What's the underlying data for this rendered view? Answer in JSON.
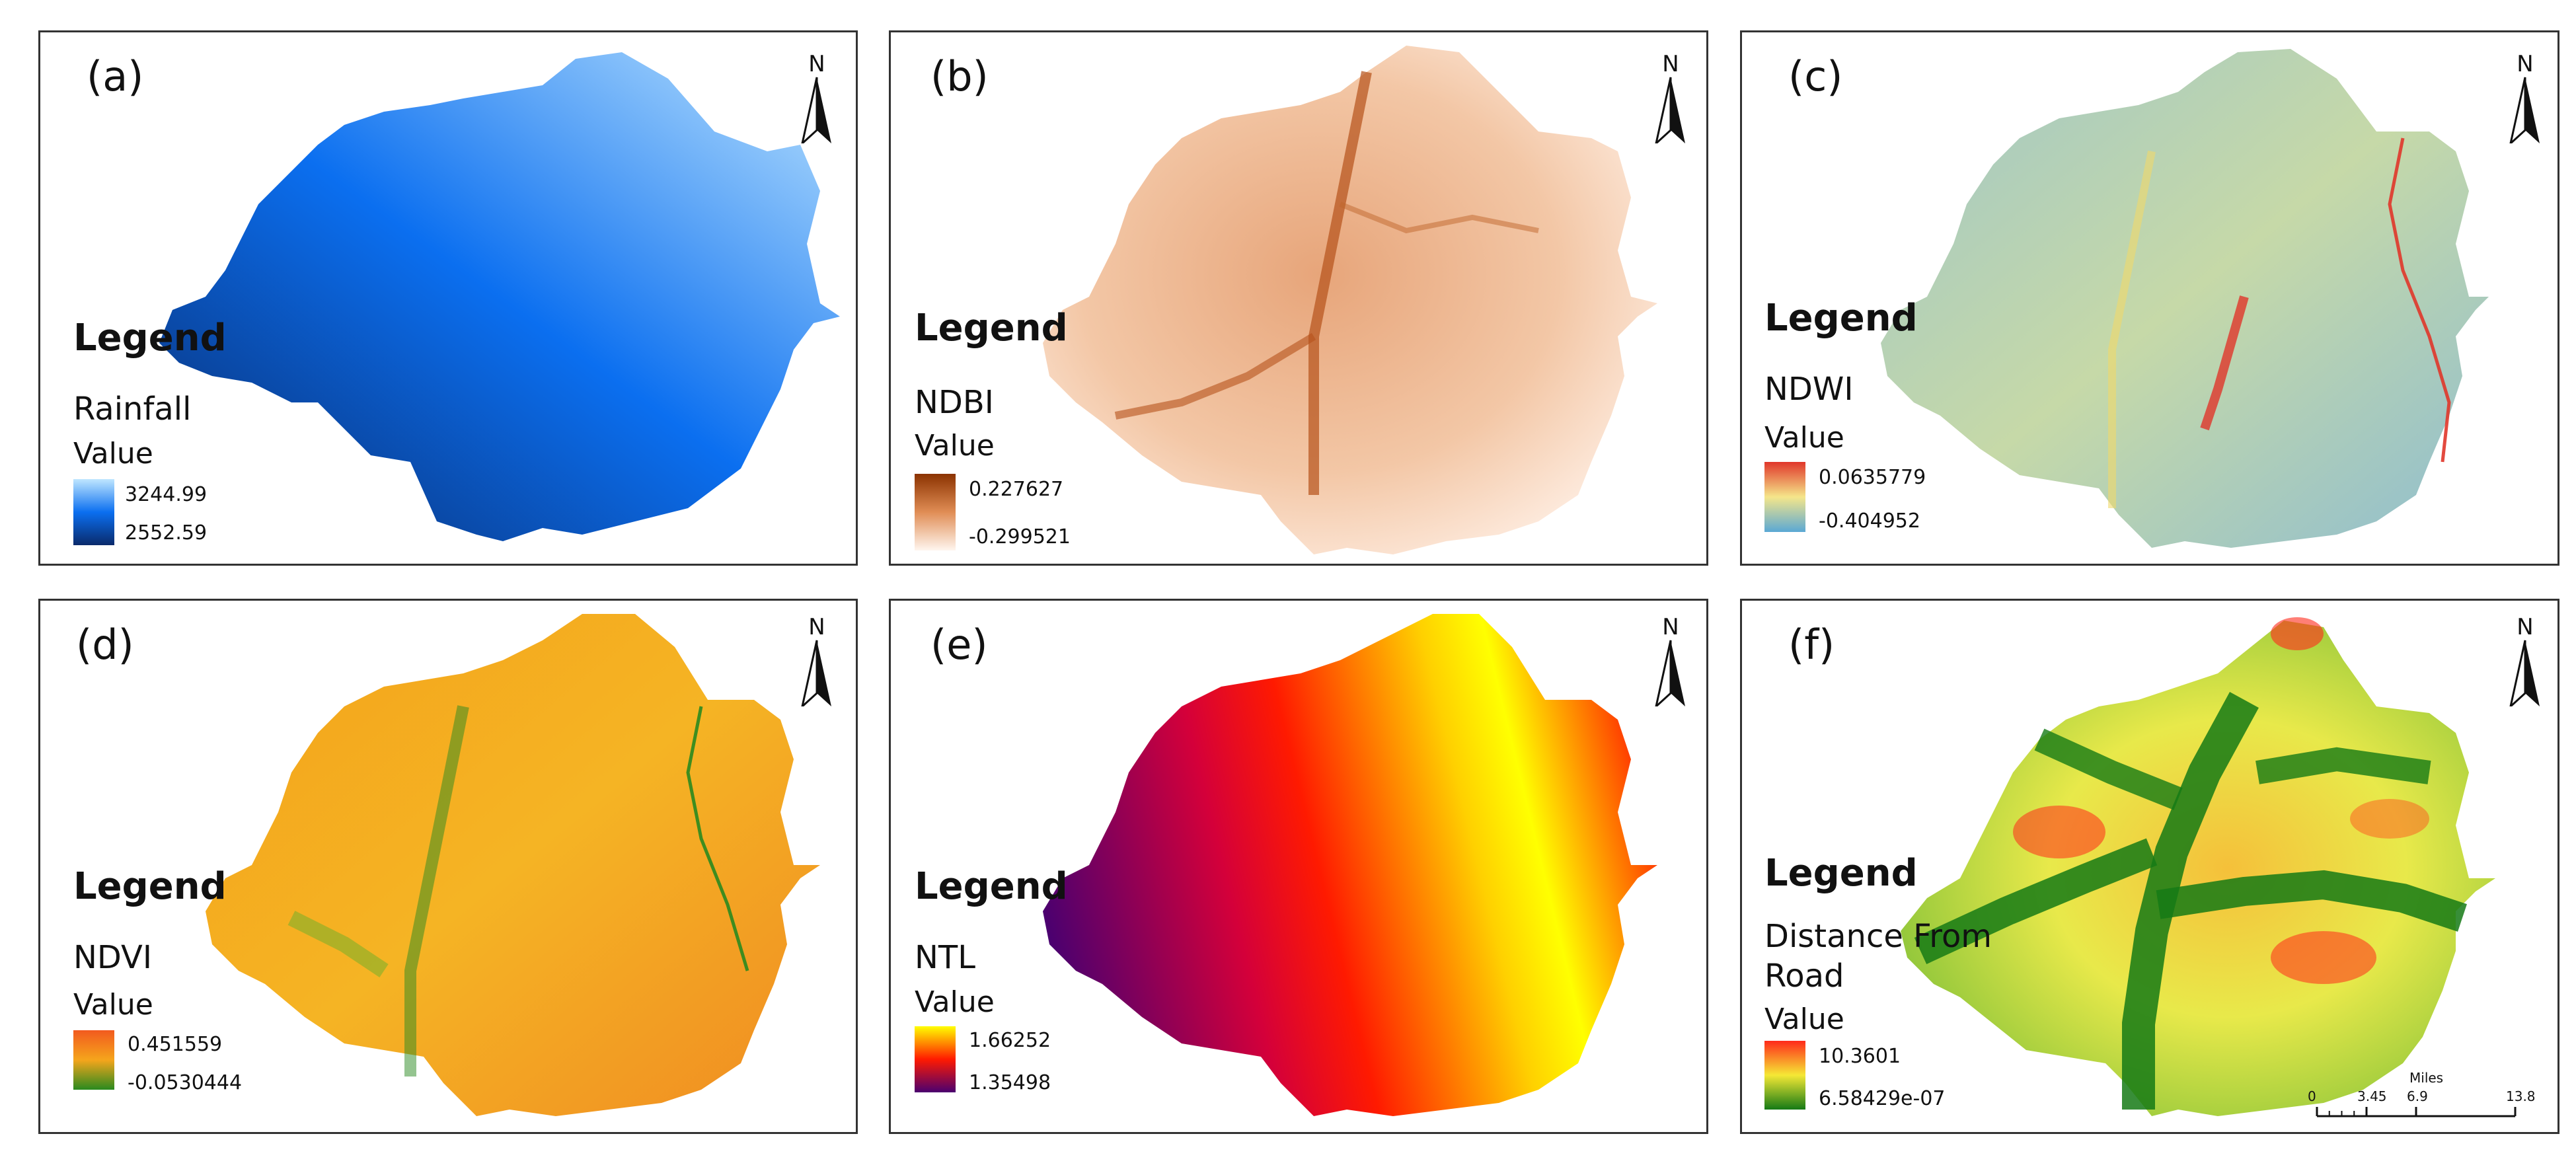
{
  "north_label": "N",
  "legend_title": "Legend",
  "value_label": "Value",
  "panels": [
    {
      "id": "a",
      "label": "(a)",
      "layer": "Rainfall",
      "max": "3244.99",
      "min": "2552.59",
      "ramp": [
        "#bfe6ff",
        "#0b6ff0",
        "#0a2a6b"
      ],
      "ramp_name": "blue"
    },
    {
      "id": "b",
      "label": "(b)",
      "layer": "NDBI",
      "max": "0.227627",
      "min": "-0.299521",
      "ramp": [
        "#8b3200",
        "#e08d55",
        "#fff6ef"
      ],
      "ramp_name": "orange"
    },
    {
      "id": "c",
      "label": "(c)",
      "layer": "NDWI",
      "max": "0.0635779",
      "min": "-0.404952",
      "ramp": [
        "#e0362a",
        "#f5e68a",
        "#5aa8d4"
      ],
      "ramp_name": "spectral"
    },
    {
      "id": "d",
      "label": "(d)",
      "layer": "NDVI",
      "max": "0.451559",
      "min": "-0.0530444",
      "ramp": [
        "#f25a1e",
        "#f5a51c",
        "#2a8a1f"
      ],
      "ramp_name": "orange-green"
    },
    {
      "id": "e",
      "label": "(e)",
      "layer": "NTL",
      "max": "1.66252",
      "min": "1.35498",
      "ramp": [
        "#ffff00",
        "#ff1a00",
        "#4a0070"
      ],
      "ramp_name": "yellow-red-purple"
    },
    {
      "id": "f",
      "label": "(f)",
      "layer": "Distance From Road",
      "max": "10.3601",
      "min": "6.58429e-07",
      "ramp": [
        "#ff2a1a",
        "#f5e835",
        "#157a15"
      ],
      "ramp_name": "red-yellow-green"
    }
  ],
  "scale": {
    "unit": "Miles",
    "ticks": [
      "0",
      "3.45",
      "6.9",
      "13.8"
    ],
    "values": [
      0,
      3.45,
      6.9,
      13.8
    ]
  }
}
